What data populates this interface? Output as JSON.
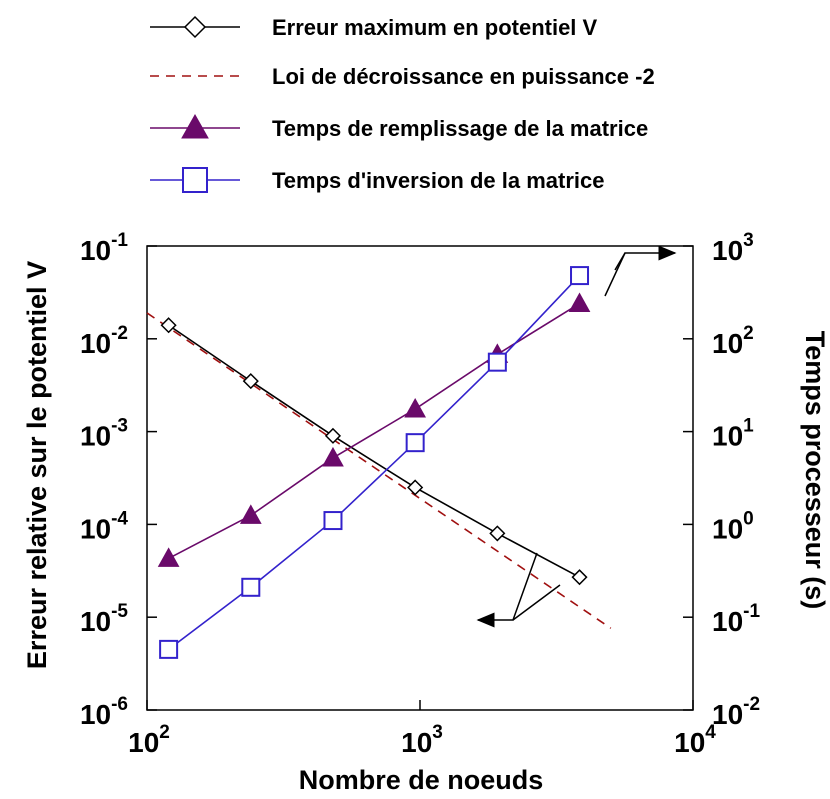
{
  "chart_data": {
    "type": "line",
    "xlabel": "Nombre de noeuds",
    "ylabel_left": "Erreur relative sur le potentiel V",
    "ylabel_right": "Temps processeur (s)",
    "x_scale": "log",
    "y_left_scale": "log",
    "y_right_scale": "log",
    "xlim": [
      100,
      10000
    ],
    "ylim_left": [
      1e-06,
      0.1
    ],
    "ylim_right": [
      0.01,
      1000
    ],
    "x_ticks": [
      {
        "base": "10",
        "exp": "2"
      },
      {
        "base": "10",
        "exp": "3"
      },
      {
        "base": "10",
        "exp": "4"
      }
    ],
    "y_left_ticks": [
      {
        "base": "10",
        "exp": "-1"
      },
      {
        "base": "10",
        "exp": "-2"
      },
      {
        "base": "10",
        "exp": "-3"
      },
      {
        "base": "10",
        "exp": "-4"
      },
      {
        "base": "10",
        "exp": "-5"
      },
      {
        "base": "10",
        "exp": "-6"
      }
    ],
    "y_right_ticks": [
      {
        "base": "10",
        "exp": "3"
      },
      {
        "base": "10",
        "exp": "2"
      },
      {
        "base": "10",
        "exp": "1"
      },
      {
        "base": "10",
        "exp": "0"
      },
      {
        "base": "10",
        "exp": "-1"
      },
      {
        "base": "10",
        "exp": "-2"
      }
    ],
    "legend_position": "top",
    "grid": false,
    "series": [
      {
        "name": "Erreur maximum en potentiel V",
        "axis": "left",
        "marker": "diamond",
        "line": "solid",
        "color": "#000000",
        "x": [
          120,
          240,
          480,
          960,
          1920,
          3840
        ],
        "y": [
          0.014,
          0.0035,
          0.0009,
          0.00025,
          8e-05,
          2.7e-05
        ]
      },
      {
        "name": "Loi de décroissance en puissance -2",
        "axis": "left",
        "marker": "none",
        "line": "dashed",
        "color": "#a01010",
        "x": [
          100,
          5000
        ],
        "y": [
          0.019,
          7.6e-06
        ]
      },
      {
        "name": "Temps de remplissage de la matrice",
        "axis": "right",
        "marker": "triangle",
        "line": "solid",
        "color": "#6a0a6a",
        "x": [
          120,
          240,
          480,
          960,
          1920,
          3840
        ],
        "y": [
          0.43,
          1.25,
          5.2,
          17.5,
          68,
          240
        ]
      },
      {
        "name": "Temps d'inversion de la matrice",
        "axis": "right",
        "marker": "square",
        "line": "solid",
        "color": "#3322cc",
        "x": [
          120,
          240,
          480,
          960,
          1920,
          3840
        ],
        "y": [
          0.045,
          0.21,
          1.1,
          7.6,
          56,
          480
        ]
      }
    ]
  }
}
